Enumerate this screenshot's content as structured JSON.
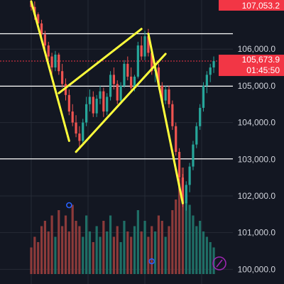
{
  "colors": {
    "background": "#131722",
    "grid": "#262b36",
    "up": "#26a69a",
    "down": "#ef5350",
    "vol_up": "#1f6f66",
    "vol_down": "#8c3a3a",
    "drawing": "#ffff3b",
    "hline": "#ffffff",
    "current_tag": "#f23645",
    "price_label": "#d1d4dc",
    "marker": "#2962ff",
    "replay_icon": "#9c27b0"
  },
  "top_tag": {
    "label": "107,053.2"
  },
  "current_price": {
    "label": "105,673.9",
    "countdown": "01:45:50"
  },
  "price_scale": {
    "labels": [
      "106,000.0",
      "105,000.0",
      "104,000.0",
      "103,000.0",
      "102,000.0",
      "101,000.0",
      "100,000.0"
    ]
  },
  "drawing_tools": {
    "icon": "replay-icon"
  },
  "chart_data": {
    "type": "candlestick",
    "ylim": [
      99600,
      107300
    ],
    "y_ticks": [
      100000,
      101000,
      102000,
      103000,
      104000,
      105000,
      106000
    ],
    "horizontal_lines": [
      106420,
      104990,
      103010
    ],
    "current_price_line": 105674,
    "candles": [
      [
        107300,
        107400,
        107050,
        107150
      ],
      [
        107150,
        107300,
        106800,
        106950
      ],
      [
        106950,
        107000,
        106600,
        106700
      ],
      [
        106700,
        106800,
        106300,
        106400
      ],
      [
        106400,
        106500,
        106000,
        106100
      ],
      [
        106100,
        106200,
        105700,
        105800
      ],
      [
        105800,
        105900,
        105300,
        105500
      ],
      [
        105500,
        105950,
        105400,
        105850
      ],
      [
        105850,
        105900,
        105300,
        105400
      ],
      [
        105400,
        105600,
        104950,
        105050
      ],
      [
        105050,
        105200,
        104600,
        104750
      ],
      [
        104750,
        104900,
        104200,
        104300
      ],
      [
        104300,
        104500,
        103900,
        104000
      ],
      [
        104000,
        104200,
        103600,
        103700
      ],
      [
        103700,
        103900,
        103300,
        103500
      ],
      [
        103500,
        104100,
        103450,
        104000
      ],
      [
        104000,
        104700,
        103900,
        104500
      ],
      [
        104500,
        104900,
        104300,
        104700
      ],
      [
        104700,
        104850,
        104150,
        104250
      ],
      [
        104250,
        104750,
        104150,
        104650
      ],
      [
        104650,
        105000,
        104500,
        104850
      ],
      [
        104850,
        104950,
        104150,
        104300
      ],
      [
        104300,
        104800,
        104200,
        104700
      ],
      [
        104700,
        105400,
        104600,
        105300
      ],
      [
        105300,
        105500,
        104900,
        105050
      ],
      [
        105050,
        105150,
        104500,
        104600
      ],
      [
        104600,
        105100,
        104500,
        105000
      ],
      [
        105000,
        105700,
        104950,
        105600
      ],
      [
        105600,
        105800,
        105150,
        105250
      ],
      [
        105250,
        105500,
        104850,
        104950
      ],
      [
        104950,
        105300,
        104850,
        105250
      ],
      [
        105250,
        106200,
        105200,
        106100
      ],
      [
        106100,
        106350,
        105700,
        105800
      ],
      [
        105800,
        106500,
        105700,
        106350
      ],
      [
        106350,
        106550,
        105800,
        105900
      ],
      [
        105900,
        106000,
        105300,
        105400
      ],
      [
        105400,
        105600,
        105100,
        105500
      ],
      [
        105500,
        105600,
        104900,
        105000
      ],
      [
        105000,
        105100,
        104500,
        104600
      ],
      [
        104600,
        105000,
        104500,
        104900
      ],
      [
        104900,
        105000,
        104400,
        104500
      ],
      [
        104500,
        104600,
        103800,
        103900
      ],
      [
        103900,
        104000,
        103100,
        103200
      ],
      [
        103200,
        103300,
        102400,
        102500
      ],
      [
        102500,
        102600,
        101700,
        101800
      ],
      [
        101800,
        102400,
        101600,
        102300
      ],
      [
        102300,
        102900,
        102100,
        102800
      ],
      [
        102800,
        103500,
        102700,
        103400
      ],
      [
        103400,
        104000,
        103300,
        103900
      ],
      [
        103900,
        104500,
        103800,
        104400
      ],
      [
        104400,
        105100,
        104300,
        105000
      ],
      [
        105000,
        105400,
        104800,
        105300
      ],
      [
        105300,
        105600,
        105100,
        105500
      ],
      [
        105500,
        105800,
        105350,
        105674
      ]
    ],
    "volumes": [
      0.25,
      0.35,
      0.3,
      0.45,
      0.5,
      0.4,
      0.55,
      0.35,
      0.6,
      0.45,
      0.55,
      0.4,
      0.65,
      0.5,
      0.45,
      0.35,
      0.55,
      0.4,
      0.3,
      0.45,
      0.35,
      0.5,
      0.4,
      0.55,
      0.35,
      0.45,
      0.3,
      0.5,
      0.4,
      0.35,
      0.45,
      0.6,
      0.4,
      0.5,
      0.35,
      0.45,
      0.4,
      0.55,
      0.5,
      0.35,
      0.45,
      0.6,
      0.7,
      0.9,
      1.0,
      0.75,
      0.65,
      0.55,
      0.45,
      0.5,
      0.4,
      0.35,
      0.3,
      0.25
    ],
    "markers": [
      {
        "index": 15,
        "pos": "high"
      },
      {
        "index": 38,
        "pos": "low"
      }
    ],
    "drawings": [
      {
        "name": "flag-channel-upper",
        "points": [
          [
            8,
            104800
          ],
          [
            32,
            106550
          ]
        ]
      },
      {
        "name": "flag-channel-lower",
        "points": [
          [
            13,
            103200
          ],
          [
            39,
            105870
          ]
        ]
      },
      {
        "name": "pole-line-left",
        "points": [
          [
            0,
            107300
          ],
          [
            11,
            103500
          ]
        ]
      },
      {
        "name": "breakdown-line",
        "points": [
          [
            34,
            106420
          ],
          [
            44,
            101800
          ]
        ]
      }
    ]
  }
}
